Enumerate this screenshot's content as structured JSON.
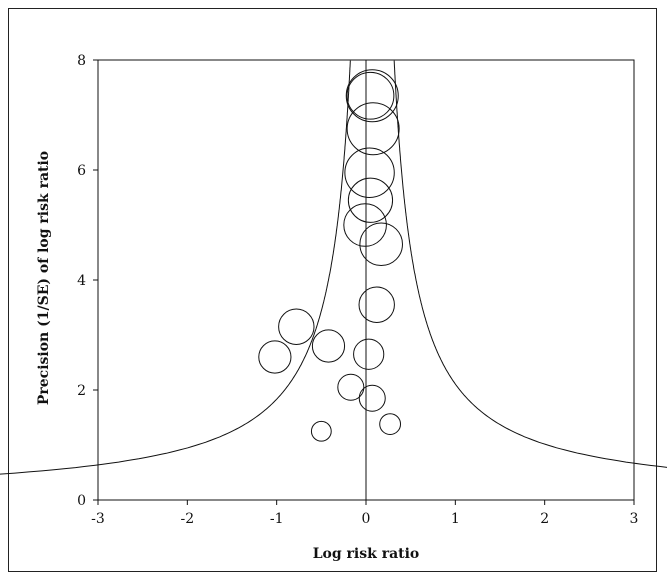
{
  "chart_data": {
    "type": "scatter",
    "title": "",
    "xlabel": "Log risk ratio",
    "ylabel": "Precision (1/SE) of log risk ratio",
    "xlim": [
      -3,
      3
    ],
    "ylim": [
      0,
      8
    ],
    "xticks": [
      -3,
      -2,
      -1,
      0,
      1,
      2,
      3
    ],
    "yticks": [
      0,
      2,
      4,
      6,
      8
    ],
    "xtick_labels": [
      "-3",
      "-2",
      "-1",
      "0",
      "1",
      "2",
      "3"
    ],
    "ytick_labels": [
      "0",
      "2",
      "4",
      "6",
      "8"
    ],
    "grid": false,
    "legend": "none",
    "pooled_estimate": 0.0,
    "funnel": {
      "center": 0.07,
      "z": 1.96,
      "y_min": 0.45,
      "y_max": 8.0
    },
    "points": [
      {
        "x": 0.07,
        "y": 7.35,
        "weight": 1.0
      },
      {
        "x": 0.05,
        "y": 7.35,
        "weight": 0.9
      },
      {
        "x": 0.08,
        "y": 6.75,
        "weight": 1.0
      },
      {
        "x": 0.04,
        "y": 5.95,
        "weight": 0.95
      },
      {
        "x": 0.05,
        "y": 5.45,
        "weight": 0.85
      },
      {
        "x": -0.01,
        "y": 5.0,
        "weight": 0.82
      },
      {
        "x": 0.17,
        "y": 4.65,
        "weight": 0.82
      },
      {
        "x": 0.12,
        "y": 3.55,
        "weight": 0.68
      },
      {
        "x": -0.78,
        "y": 3.15,
        "weight": 0.68
      },
      {
        "x": -0.42,
        "y": 2.8,
        "weight": 0.62
      },
      {
        "x": -1.02,
        "y": 2.6,
        "weight": 0.62
      },
      {
        "x": 0.03,
        "y": 2.65,
        "weight": 0.58
      },
      {
        "x": -0.17,
        "y": 2.05,
        "weight": 0.5
      },
      {
        "x": 0.07,
        "y": 1.85,
        "weight": 0.5
      },
      {
        "x": -0.5,
        "y": 1.25,
        "weight": 0.38
      },
      {
        "x": 0.27,
        "y": 1.38,
        "weight": 0.4
      }
    ]
  }
}
